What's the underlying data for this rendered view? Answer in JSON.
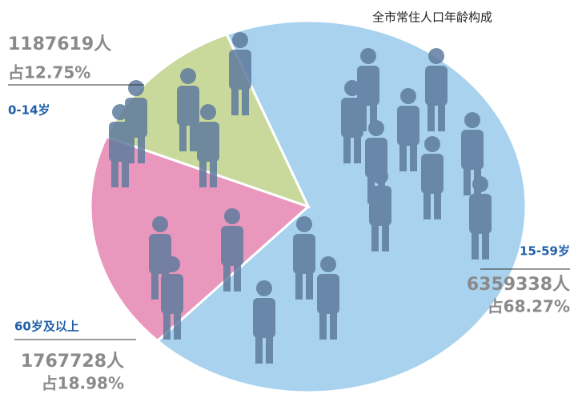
{
  "chart_data": {
    "type": "pie",
    "title": "全市常住人口年龄构成",
    "categories": [
      "0-14岁",
      "15-59岁",
      "60岁及以上"
    ],
    "values": [
      12.75,
      68.27,
      18.98
    ],
    "value_labels": [
      "占12.75%",
      "占68.27%",
      "占18.98%"
    ],
    "counts": [
      1187619,
      6359338,
      1767728
    ],
    "count_labels": [
      "1187619人",
      "6359338人",
      "1767728人"
    ],
    "colors": [
      "#c9d99c",
      "#a8d2ee",
      "#ea97bd"
    ]
  }
}
